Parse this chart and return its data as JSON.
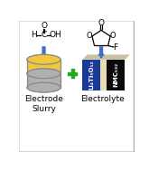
{
  "arrow_color": "#3a6fcc",
  "plus_color": "#22aa22",
  "cylinder_body_color": "#f0c840",
  "cylinder_rim_color": "#d4a820",
  "cylinder_bottom_color": "#b0b0b0",
  "cylinder_stroke": "#888888",
  "lto_color": "#1a3a9a",
  "separator_color": "#e8ddb0",
  "nmc_color": "#0a0a0a",
  "top_face_color": "#c8c0a0",
  "label_left": "Electrode\nSlurry",
  "label_right": "Electrolyte",
  "lto_text": "Li₄Ti₅O₁₂",
  "nmc_text": "NMC₅₃₂",
  "border_color": "#aaaaaa",
  "bg_color": "#ffffff"
}
